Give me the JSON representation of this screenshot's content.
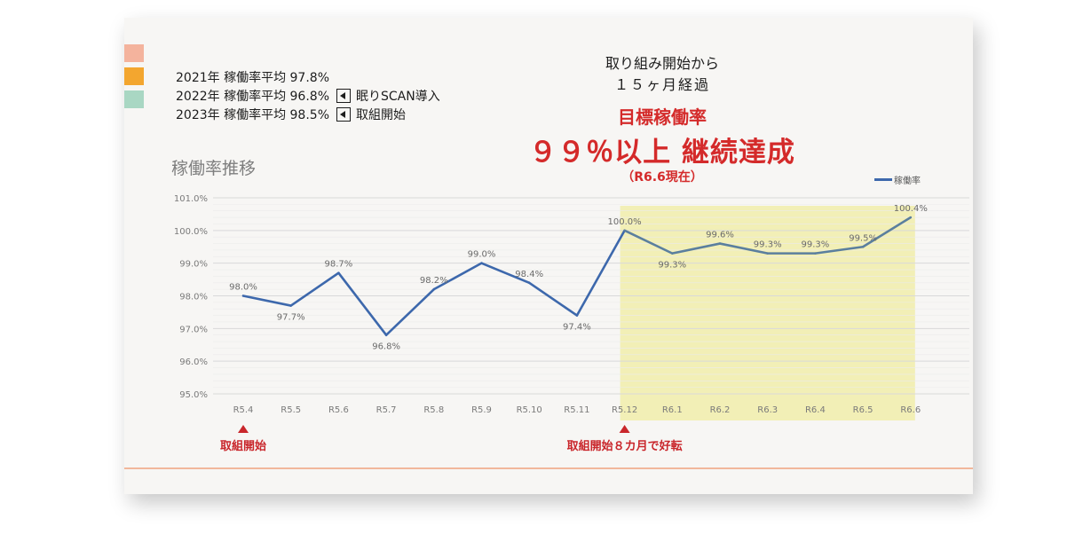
{
  "legend": [
    {
      "text": "2021年 稼働率平均 97.8%",
      "color": "#f4b39d",
      "note": ""
    },
    {
      "text": "2022年 稼働率平均 96.8%",
      "color": "#f3a62f",
      "note": "眠りSCAN導入"
    },
    {
      "text": "2023年 稼働率平均 98.5%",
      "color": "#a9d7c3",
      "note": "取組開始"
    }
  ],
  "headline": {
    "line1": "取り組み開始から",
    "line2": "１５ヶ月経過",
    "line3": "目標稼働率",
    "line4": "９９％以上 継続達成",
    "line5": "（R6.6現在）"
  },
  "colors": {
    "line": "#3d68ac",
    "line_highlight": "#5b7f9e",
    "highlight_band": "#f2efb6",
    "annotation": "#c9262b",
    "grid": "#d9d9d9"
  },
  "chart_data": {
    "type": "line",
    "title": "稼働率推移",
    "categories": [
      "R5.4",
      "R5.5",
      "R5.6",
      "R5.7",
      "R5.8",
      "R5.9",
      "R5.10",
      "R5.11",
      "R5.12",
      "R6.1",
      "R6.2",
      "R6.3",
      "R6.4",
      "R6.5",
      "R6.6"
    ],
    "series": [
      {
        "name": "稼働率",
        "values": [
          98.0,
          97.7,
          98.7,
          96.8,
          98.2,
          99.0,
          98.4,
          97.4,
          100.0,
          99.3,
          99.6,
          99.3,
          99.3,
          99.5,
          100.4
        ],
        "labels": [
          "98.0%",
          "97.7%",
          "98.7%",
          "96.8%",
          "98.2%",
          "99.0%",
          "98.4%",
          "97.4%",
          "100.0%",
          "99.3%",
          "99.6%",
          "99.3%",
          "99.3%",
          "99.5%",
          "100.4%"
        ]
      }
    ],
    "ylim": [
      95.0,
      101.0
    ],
    "yticks": [
      "95.0%",
      "96.0%",
      "97.0%",
      "98.0%",
      "99.0%",
      "100.0%",
      "101.0%"
    ],
    "yticks_values": [
      95,
      96,
      97,
      98,
      99,
      100,
      101
    ],
    "grid": true,
    "legend_position": "top-right",
    "highlight_range": [
      "R5.12",
      "R6.6"
    ],
    "annotations": [
      {
        "category": "R5.4",
        "text": "取組開始"
      },
      {
        "category": "R5.12",
        "text": "取組開始８カ月で好転"
      }
    ]
  }
}
